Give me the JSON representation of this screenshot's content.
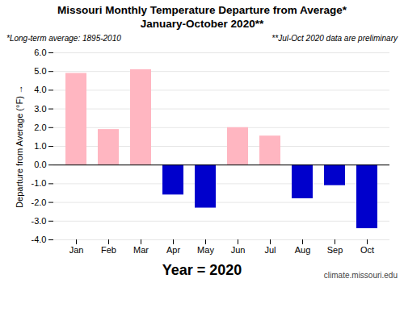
{
  "chart_data": {
    "type": "bar",
    "title": "Missouri Monthly Temperature Departure from Average*",
    "subtitle": "January-October 2020**",
    "xlabel": "Year = 2020",
    "ylabel": "Departure from Average (°F)",
    "annotations": [
      "*Long-term average: 1895-2010",
      "**Jul-Oct 2020 data are preliminary",
      "climate.missouri.edu"
    ],
    "categories": [
      "Jan",
      "Feb",
      "Mar",
      "Apr",
      "May",
      "Jun",
      "Jul",
      "Aug",
      "Sep",
      "Oct"
    ],
    "values": [
      4.9,
      1.9,
      5.1,
      -1.6,
      -2.3,
      2.0,
      1.55,
      -1.8,
      -1.1,
      -3.4
    ],
    "colors": [
      "#FFB6C1",
      "#FFB6C1",
      "#FFB6C1",
      "#0000CC",
      "#0000CC",
      "#FFB6C1",
      "#FFB6C1",
      "#0000CC",
      "#0000CC",
      "#0000CC"
    ],
    "ylim": [
      -4.0,
      6.0
    ],
    "yticks": [
      {
        "value": -4,
        "label": "-4.0"
      },
      {
        "value": -3,
        "label": "-3.0"
      },
      {
        "value": -2,
        "label": "-2.0"
      },
      {
        "value": -1,
        "label": "-1.0"
      },
      {
        "value": 0,
        "label": "0.0"
      },
      {
        "value": 1,
        "label": "1.0"
      },
      {
        "value": 2,
        "label": "2.0"
      },
      {
        "value": 3,
        "label": "3.0"
      },
      {
        "value": 4,
        "label": "4.0"
      },
      {
        "value": 5,
        "label": "5.0"
      },
      {
        "value": 6,
        "label": "6.0"
      }
    ],
    "grid": true
  }
}
